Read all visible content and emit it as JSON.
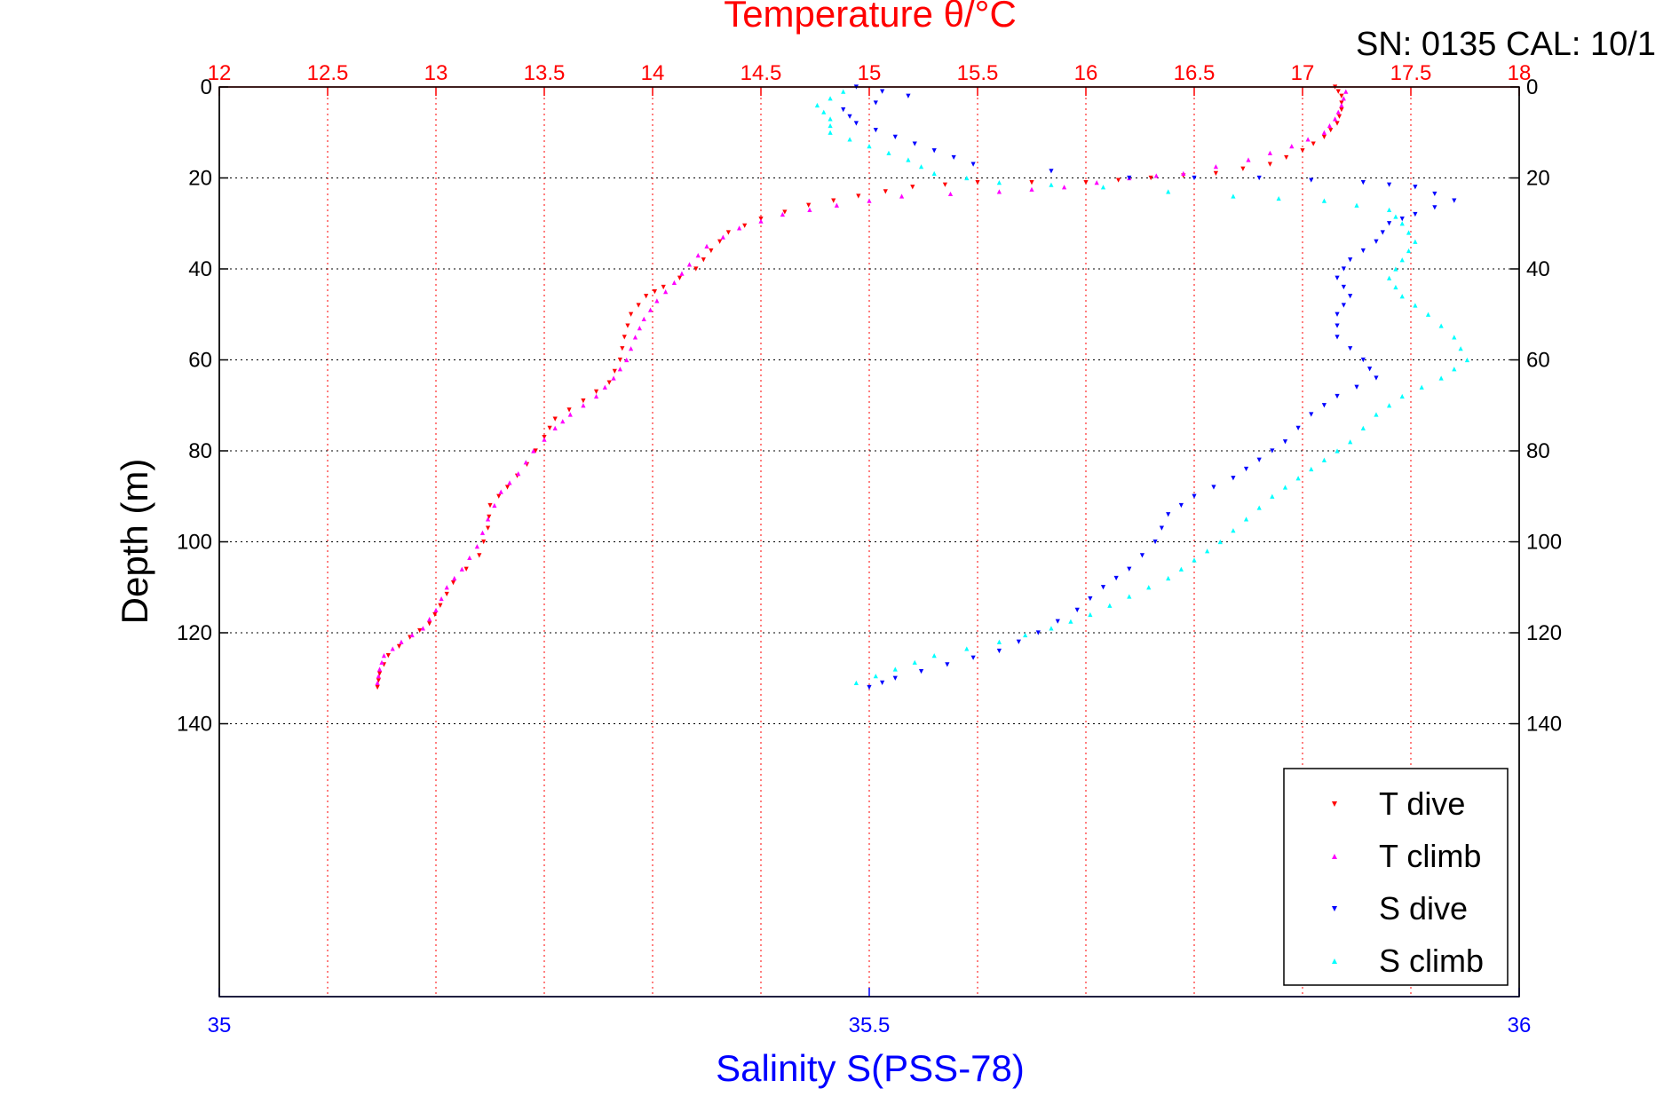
{
  "chart_data": {
    "type": "scatter",
    "title": "Temperature θ/°C",
    "subtitle": "SN: 0135  CAL: 10/1",
    "ylabel": "Depth (m)",
    "xlabel": "Salinity S(PSS-78)",
    "y_axis": {
      "range": [
        0,
        200
      ],
      "reversed": true,
      "ticks": [
        0,
        20,
        40,
        60,
        80,
        100,
        120,
        140
      ]
    },
    "temperature_axis": {
      "position": "top",
      "range": [
        12,
        18
      ],
      "ticks": [
        12,
        12.5,
        13,
        13.5,
        14,
        14.5,
        15,
        15.5,
        16,
        16.5,
        17,
        17.5,
        18
      ]
    },
    "salinity_axis": {
      "position": "bottom",
      "range": [
        35,
        36
      ],
      "ticks": [
        35,
        35.5,
        36
      ]
    },
    "grid": true,
    "legend": {
      "placement": "bottom-right",
      "entries": [
        "T dive",
        "T climb",
        "S dive",
        "S climb"
      ]
    },
    "colors": {
      "T dive": "#ff0000",
      "T climb": "#ff00ff",
      "S dive": "#0000ff",
      "S climb": "#00ffff",
      "temperature_axis": "#ff0000",
      "salinity_axis": "#0000ff",
      "grid_temp": "#ff0000",
      "grid_depth": "#000000"
    },
    "series": [
      {
        "name": "T dive",
        "axis": "temperature",
        "marker": "triangle-down",
        "points": [
          [
            17.15,
            0
          ],
          [
            17.18,
            2
          ],
          [
            17.18,
            5
          ],
          [
            17.16,
            8
          ],
          [
            17.1,
            11
          ],
          [
            17.0,
            14
          ],
          [
            16.85,
            17
          ],
          [
            16.6,
            19
          ],
          [
            16.3,
            20
          ],
          [
            16.0,
            21
          ],
          [
            15.5,
            21
          ],
          [
            15.2,
            22
          ],
          [
            14.95,
            24
          ],
          [
            14.72,
            26
          ],
          [
            14.5,
            29
          ],
          [
            14.35,
            32
          ],
          [
            14.27,
            36
          ],
          [
            14.2,
            40
          ],
          [
            14.05,
            44
          ],
          [
            13.97,
            46
          ],
          [
            13.9,
            50
          ],
          [
            13.87,
            55
          ],
          [
            13.85,
            60
          ],
          [
            13.8,
            65
          ],
          [
            13.68,
            69
          ],
          [
            13.55,
            73
          ],
          [
            13.5,
            77
          ],
          [
            13.42,
            83
          ],
          [
            13.33,
            88
          ],
          [
            13.25,
            92
          ],
          [
            13.24,
            97
          ],
          [
            13.2,
            103
          ],
          [
            13.08,
            109
          ],
          [
            13.02,
            114
          ],
          [
            12.97,
            118
          ],
          [
            12.88,
            121
          ],
          [
            12.78,
            125
          ],
          [
            12.74,
            129
          ],
          [
            12.73,
            132
          ]
        ]
      },
      {
        "name": "T climb",
        "axis": "temperature",
        "marker": "triangle-up",
        "points": [
          [
            17.2,
            1
          ],
          [
            17.18,
            4
          ],
          [
            17.15,
            7
          ],
          [
            17.1,
            10
          ],
          [
            16.95,
            13
          ],
          [
            16.75,
            16
          ],
          [
            16.45,
            19
          ],
          [
            16.2,
            20
          ],
          [
            15.9,
            22
          ],
          [
            15.6,
            23
          ],
          [
            15.15,
            24
          ],
          [
            14.85,
            26
          ],
          [
            14.6,
            28
          ],
          [
            14.4,
            31
          ],
          [
            14.25,
            35
          ],
          [
            14.17,
            39
          ],
          [
            14.1,
            43
          ],
          [
            14.02,
            47
          ],
          [
            13.96,
            51
          ],
          [
            13.92,
            55
          ],
          [
            13.88,
            60
          ],
          [
            13.82,
            64
          ],
          [
            13.74,
            68
          ],
          [
            13.62,
            72
          ],
          [
            13.55,
            75
          ],
          [
            13.45,
            80
          ],
          [
            13.38,
            85
          ],
          [
            13.3,
            89
          ],
          [
            13.24,
            95
          ],
          [
            13.19,
            101
          ],
          [
            13.12,
            106
          ],
          [
            13.05,
            110
          ],
          [
            13.0,
            115
          ],
          [
            12.94,
            119
          ],
          [
            12.84,
            122
          ],
          [
            12.76,
            125
          ],
          [
            12.74,
            128
          ],
          [
            12.73,
            131
          ]
        ]
      },
      {
        "name": "S dive",
        "axis": "salinity",
        "marker": "triangle-down",
        "points": [
          [
            35.49,
            0
          ],
          [
            35.53,
            2
          ],
          [
            35.48,
            5
          ],
          [
            35.49,
            8
          ],
          [
            35.52,
            11
          ],
          [
            35.55,
            14
          ],
          [
            35.58,
            17
          ],
          [
            35.7,
            20
          ],
          [
            35.8,
            20
          ],
          [
            35.88,
            21
          ],
          [
            35.92,
            22
          ],
          [
            35.95,
            25
          ],
          [
            35.92,
            28
          ],
          [
            35.9,
            30
          ],
          [
            35.89,
            34
          ],
          [
            35.87,
            38
          ],
          [
            35.86,
            42
          ],
          [
            35.87,
            46
          ],
          [
            35.86,
            50
          ],
          [
            35.86,
            55
          ],
          [
            35.88,
            60
          ],
          [
            35.89,
            64
          ],
          [
            35.86,
            68
          ],
          [
            35.84,
            72
          ],
          [
            35.82,
            78
          ],
          [
            35.8,
            82
          ],
          [
            35.78,
            86
          ],
          [
            35.75,
            90
          ],
          [
            35.73,
            94
          ],
          [
            35.72,
            100
          ],
          [
            35.7,
            106
          ],
          [
            35.68,
            110
          ],
          [
            35.66,
            115
          ],
          [
            35.63,
            120
          ],
          [
            35.6,
            124
          ],
          [
            35.56,
            127
          ],
          [
            35.52,
            130
          ],
          [
            35.5,
            132
          ]
        ]
      },
      {
        "name": "S climb",
        "axis": "salinity",
        "marker": "triangle-up",
        "points": [
          [
            35.48,
            1
          ],
          [
            35.46,
            4
          ],
          [
            35.47,
            7
          ],
          [
            35.47,
            10
          ],
          [
            35.5,
            13
          ],
          [
            35.53,
            16
          ],
          [
            35.55,
            19
          ],
          [
            35.6,
            21
          ],
          [
            35.68,
            22
          ],
          [
            35.78,
            24
          ],
          [
            35.85,
            25
          ],
          [
            35.9,
            27
          ],
          [
            35.91,
            30
          ],
          [
            35.92,
            34
          ],
          [
            35.91,
            38
          ],
          [
            35.9,
            42
          ],
          [
            35.91,
            46
          ],
          [
            35.93,
            50
          ],
          [
            35.95,
            55
          ],
          [
            35.96,
            60
          ],
          [
            35.94,
            64
          ],
          [
            35.91,
            68
          ],
          [
            35.89,
            72
          ],
          [
            35.87,
            78
          ],
          [
            35.85,
            82
          ],
          [
            35.83,
            86
          ],
          [
            35.81,
            90
          ],
          [
            35.79,
            95
          ],
          [
            35.77,
            100
          ],
          [
            35.75,
            104
          ],
          [
            35.73,
            108
          ],
          [
            35.7,
            112
          ],
          [
            35.67,
            116
          ],
          [
            35.64,
            119
          ],
          [
            35.6,
            122
          ],
          [
            35.55,
            125
          ],
          [
            35.52,
            128
          ],
          [
            35.49,
            131
          ]
        ]
      }
    ]
  }
}
